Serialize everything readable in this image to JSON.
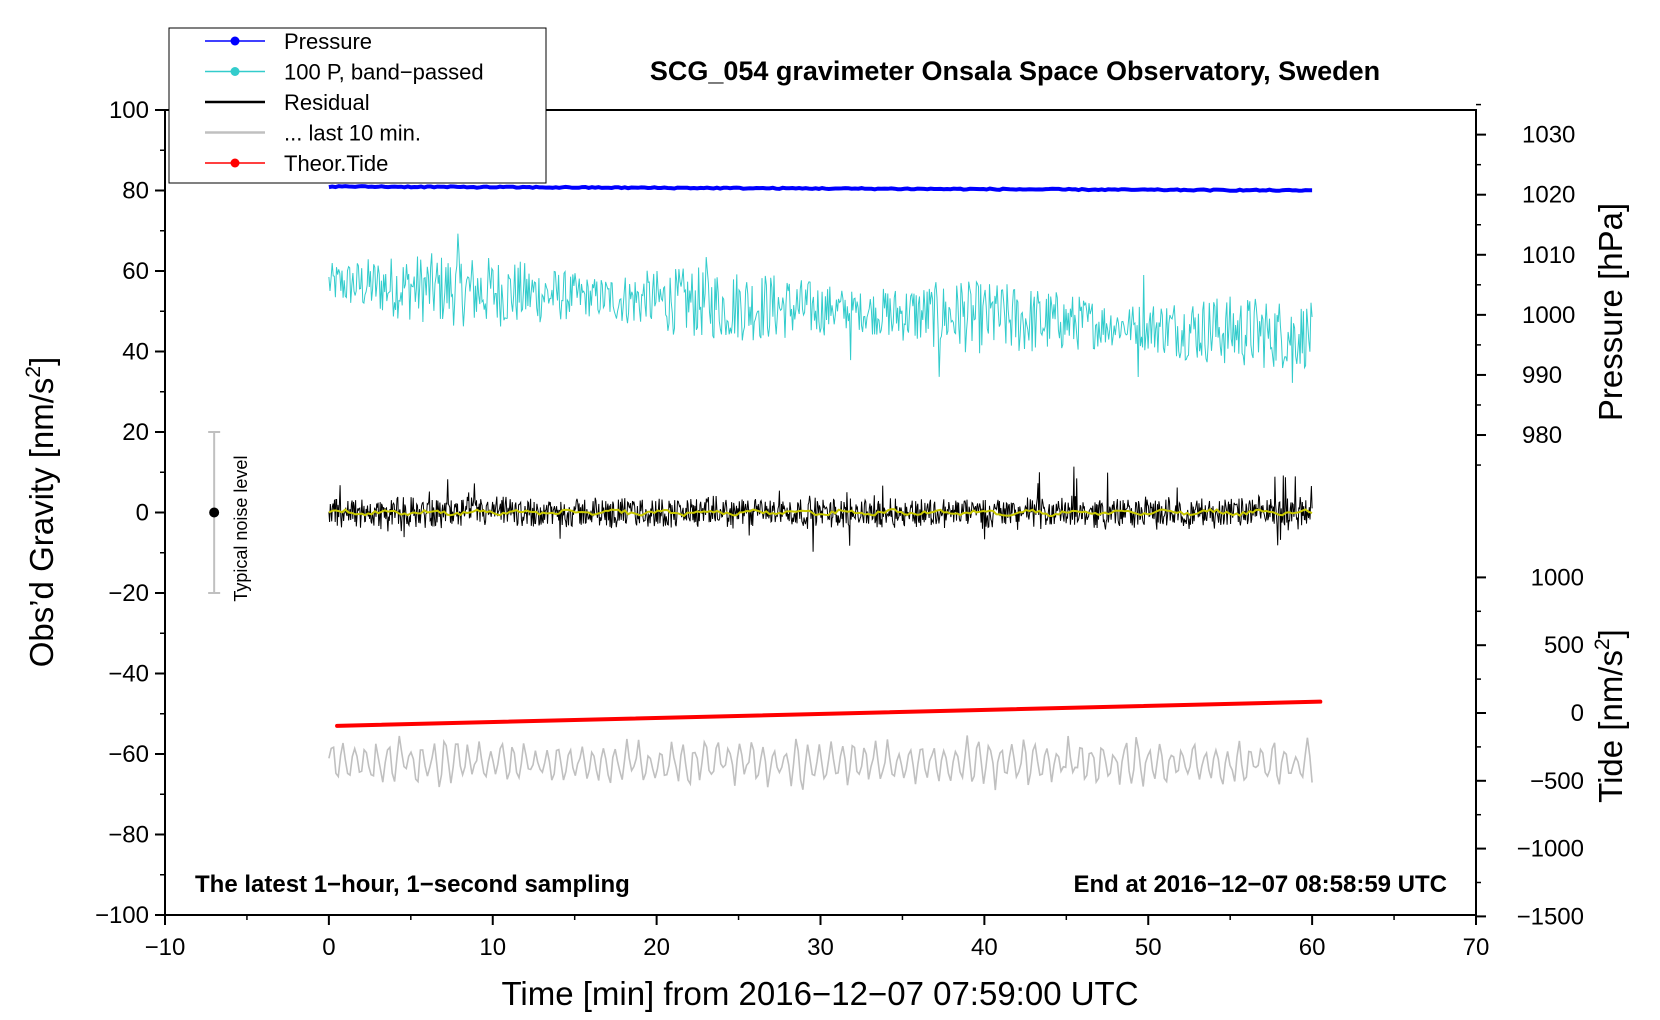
{
  "chart_data": {
    "type": "line",
    "title": "SCG_054 gravimeter Onsala Space Observatory, Sweden",
    "xlabel": "Time [min] from 2016−12−07 07:59:00 UTC",
    "ylabel_left": "Obs’d Gravity [nm/s²]",
    "ylabel_left_main": "Obs’d Gravity [nm/s",
    "ylabel_left_sup": "2",
    "ylabel_left_end": "]",
    "ylabel_right_pressure": "Pressure [hPa]",
    "ylabel_right_tide": "Tide [nm/s²]",
    "ylabel_right_tide_main": "Tide [nm/s",
    "ylabel_right_tide_sup": "2",
    "ylabel_right_tide_end": "]",
    "xlim": [
      -10,
      70
    ],
    "ylim_left": [
      -100,
      100
    ],
    "pressure_axis": {
      "ticks": [
        980,
        990,
        1000,
        1010,
        1020,
        1030
      ],
      "tick_labels": [
        "980",
        "990",
        "1000",
        "1010",
        "1020",
        "1030"
      ]
    },
    "tide_axis": {
      "ticks": [
        -1500,
        -1000,
        -500,
        0,
        500,
        1000
      ],
      "tick_labels": [
        "−1500",
        "−1000",
        "−500",
        "0",
        "500",
        "1000"
      ]
    },
    "x_ticks": [
      -10,
      0,
      10,
      20,
      30,
      40,
      50,
      60,
      70
    ],
    "x_tick_labels": [
      "−10",
      "0",
      "10",
      "20",
      "30",
      "40",
      "50",
      "60",
      "70"
    ],
    "y_ticks": [
      -100,
      -80,
      -60,
      -40,
      -20,
      0,
      20,
      40,
      60,
      80,
      100
    ],
    "y_tick_labels": [
      "−100",
      "−80",
      "−60",
      "−40",
      "−20",
      "0",
      "20",
      "40",
      "60",
      "80",
      "100"
    ],
    "legend": [
      {
        "label": "Pressure",
        "color": "#0000ff",
        "marker": true
      },
      {
        "label": "100 P, band−passed",
        "color": "#33cccc",
        "marker": true
      },
      {
        "label": "Residual",
        "color": "#000000",
        "marker": false
      },
      {
        "label": "... last 10 min.",
        "color": "#c0c0c0",
        "marker": false
      },
      {
        "label": "Theor.Tide",
        "color": "#ff0000",
        "marker": true
      }
    ],
    "series": [
      {
        "name": "Pressure",
        "color": "#0000ff",
        "x_range": [
          0,
          60
        ],
        "y_start": 81,
        "y_end": 80,
        "noise": 0.3
      },
      {
        "name": "100 P, band−passed",
        "color": "#33cccc",
        "x_range": [
          0,
          60
        ],
        "y_center_start": 57,
        "y_center_end": 44,
        "amplitude": 7
      },
      {
        "name": "Residual",
        "color": "#000000",
        "x_range": [
          0,
          60
        ],
        "y_center": 0,
        "amplitude": 4
      },
      {
        "name": "Residual smoothed",
        "color": "#c8c800",
        "x_range": [
          0,
          60
        ],
        "y_center": 0,
        "amplitude": 0.8
      },
      {
        "name": "Theor.Tide",
        "color": "#ff0000",
        "x_range": [
          0.5,
          60.5
        ],
        "y_start": -53,
        "y_end": -47
      },
      {
        "name": "... last 10 min.",
        "color": "#c0c0c0",
        "x_range": [
          0,
          60
        ],
        "y_center": -62,
        "amplitude": 4
      }
    ],
    "noise_level": {
      "label": "Typical noise level",
      "x": -7,
      "y": 0,
      "y_low": -20,
      "y_high": 20
    },
    "annotations": {
      "bottom_left": "The latest 1−hour, 1−second sampling",
      "bottom_right": "End at 2016−12−07 08:58:59 UTC"
    },
    "grid": false
  }
}
